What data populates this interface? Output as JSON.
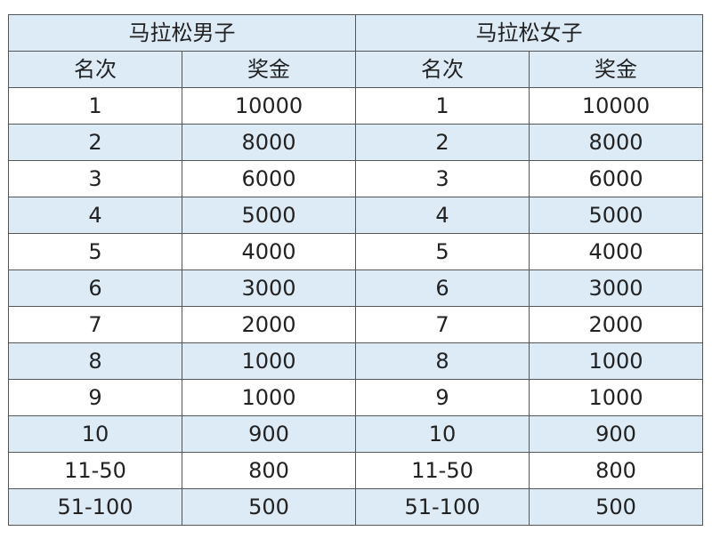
{
  "groups": [
    "马拉松男子",
    "马拉松女子"
  ],
  "columns": [
    "名次",
    "奖金"
  ],
  "rows": [
    [
      "1",
      "10000"
    ],
    [
      "2",
      "8000"
    ],
    [
      "3",
      "6000"
    ],
    [
      "4",
      "5000"
    ],
    [
      "5",
      "4000"
    ],
    [
      "6",
      "3000"
    ],
    [
      "7",
      "2000"
    ],
    [
      "8",
      "1000"
    ],
    [
      "9",
      "1000"
    ],
    [
      "10",
      "900"
    ],
    [
      "11-50",
      "800"
    ],
    [
      "51-100",
      "500"
    ]
  ],
  "colors": {
    "band": "#ddebf7",
    "border": "#555555"
  }
}
